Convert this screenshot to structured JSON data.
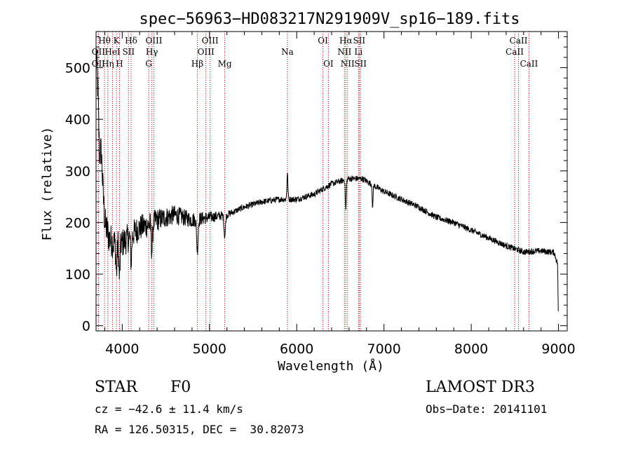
{
  "chart_data": {
    "type": "line",
    "title": "spec−56963−HD083217N291909V_sp16−189.fits",
    "xlabel": "Wavelength (Å)",
    "ylabel": "Flux (relative)",
    "xlim": [
      3700,
      9100
    ],
    "ylim": [
      -10,
      570
    ],
    "xticks": [
      4000,
      5000,
      6000,
      7000,
      8000,
      9000
    ],
    "yticks": [
      0,
      100,
      200,
      300,
      400,
      500
    ],
    "continuum": [
      {
        "x": 3700,
        "y": 530
      },
      {
        "x": 3720,
        "y": 460
      },
      {
        "x": 3740,
        "y": 330
      },
      {
        "x": 3760,
        "y": 340
      },
      {
        "x": 3780,
        "y": 260
      },
      {
        "x": 3800,
        "y": 200
      },
      {
        "x": 3850,
        "y": 170
      },
      {
        "x": 3900,
        "y": 160
      },
      {
        "x": 3950,
        "y": 165
      },
      {
        "x": 4000,
        "y": 160
      },
      {
        "x": 4100,
        "y": 175
      },
      {
        "x": 4200,
        "y": 190
      },
      {
        "x": 4300,
        "y": 195
      },
      {
        "x": 4400,
        "y": 205
      },
      {
        "x": 4600,
        "y": 215
      },
      {
        "x": 4800,
        "y": 205
      },
      {
        "x": 5000,
        "y": 210
      },
      {
        "x": 5200,
        "y": 215
      },
      {
        "x": 5400,
        "y": 230
      },
      {
        "x": 5600,
        "y": 240
      },
      {
        "x": 5800,
        "y": 245
      },
      {
        "x": 6000,
        "y": 245
      },
      {
        "x": 6200,
        "y": 255
      },
      {
        "x": 6400,
        "y": 275
      },
      {
        "x": 6600,
        "y": 285
      },
      {
        "x": 6750,
        "y": 285
      },
      {
        "x": 6900,
        "y": 270
      },
      {
        "x": 7000,
        "y": 260
      },
      {
        "x": 7200,
        "y": 245
      },
      {
        "x": 7400,
        "y": 230
      },
      {
        "x": 7600,
        "y": 210
      },
      {
        "x": 7800,
        "y": 200
      },
      {
        "x": 8000,
        "y": 185
      },
      {
        "x": 8200,
        "y": 170
      },
      {
        "x": 8400,
        "y": 155
      },
      {
        "x": 8600,
        "y": 143
      },
      {
        "x": 8800,
        "y": 145
      },
      {
        "x": 8950,
        "y": 142
      },
      {
        "x": 8990,
        "y": 120
      },
      {
        "x": 9000,
        "y": 5
      }
    ],
    "features": [
      {
        "x": 3934,
        "depth": 60,
        "width": 10
      },
      {
        "x": 3969,
        "depth": 70,
        "width": 10
      },
      {
        "x": 4102,
        "depth": 50,
        "width": 10
      },
      {
        "x": 4340,
        "depth": 55,
        "width": 10
      },
      {
        "x": 4861,
        "depth": 60,
        "width": 12
      },
      {
        "x": 5175,
        "depth": 40,
        "width": 12
      },
      {
        "x": 6563,
        "depth": 60,
        "width": 8
      },
      {
        "x": 6870,
        "depth": 50,
        "width": 6
      }
    ],
    "emission": [
      {
        "x": 5893,
        "height": 50,
        "width": 8
      }
    ],
    "noise_amplitude_blue": 35,
    "noise_amplitude_red": 6,
    "spectral_lines": [
      {
        "label": "OII",
        "x": 3727,
        "row": 2
      },
      {
        "label": "OII",
        "x": 3727,
        "row": 3
      },
      {
        "label": "Hθ",
        "x": 3797,
        "row": 1
      },
      {
        "label": "HeI",
        "x": 3889,
        "row": 2
      },
      {
        "label": "Hη",
        "x": 3835,
        "row": 3
      },
      {
        "label": "K",
        "x": 3934,
        "row": 1
      },
      {
        "label": "SII",
        "x": 4072,
        "row": 2
      },
      {
        "label": "H",
        "x": 3969,
        "row": 3
      },
      {
        "label": "Hδ",
        "x": 4102,
        "row": 1
      },
      {
        "label": "OIII",
        "x": 4363,
        "row": 1
      },
      {
        "label": "Hγ",
        "x": 4340,
        "row": 2
      },
      {
        "label": "G",
        "x": 4304,
        "row": 3
      },
      {
        "label": "OIII",
        "x": 5007,
        "row": 1
      },
      {
        "label": "OIII",
        "x": 4959,
        "row": 2
      },
      {
        "label": "Hβ",
        "x": 4861,
        "row": 3
      },
      {
        "label": "Mg",
        "x": 5175,
        "row": 3
      },
      {
        "label": "Na",
        "x": 5893,
        "row": 2
      },
      {
        "label": "OI",
        "x": 6300,
        "row": 1
      },
      {
        "label": "OI",
        "x": 6363,
        "row": 3
      },
      {
        "label": "Hα",
        "x": 6563,
        "row": 1
      },
      {
        "label": "NII",
        "x": 6548,
        "row": 2
      },
      {
        "label": "NII",
        "x": 6583,
        "row": 3
      },
      {
        "label": "SII",
        "x": 6716,
        "row": 1
      },
      {
        "label": "Li",
        "x": 6708,
        "row": 2
      },
      {
        "label": "SII",
        "x": 6731,
        "row": 3
      },
      {
        "label": "CaII",
        "x": 8542,
        "row": 1
      },
      {
        "label": "CaII",
        "x": 8498,
        "row": 2
      },
      {
        "label": "CaII",
        "x": 8662,
        "row": 3
      }
    ],
    "colors": {
      "data": "#000000",
      "lines": "#c00000",
      "axes": "#000000"
    }
  },
  "info": {
    "object_class": "STAR",
    "subclass": "F0",
    "survey": "LAMOST DR3",
    "cz": "cz = −42.6 ± 11.4 km/s",
    "obs_date": "Obs−Date: 20141101",
    "coords": "RA = 126.50315, DEC =  30.82073"
  }
}
